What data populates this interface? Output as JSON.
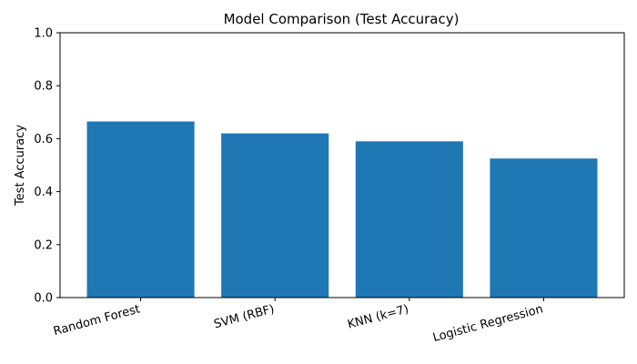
{
  "chart_data": {
    "type": "bar",
    "title": "Model Comparison (Test Accuracy)",
    "xlabel": "",
    "ylabel": "Test Accuracy",
    "categories": [
      "Random Forest",
      "SVM (RBF)",
      "KNN (k=7)",
      "Logistic Regression"
    ],
    "values": [
      0.665,
      0.62,
      0.59,
      0.525
    ],
    "ylim": [
      0,
      1.0
    ],
    "yticks": [
      "0.0",
      "0.2",
      "0.4",
      "0.6",
      "0.8",
      "1.0"
    ],
    "grid": false,
    "bar_color": "#1f77b4"
  }
}
